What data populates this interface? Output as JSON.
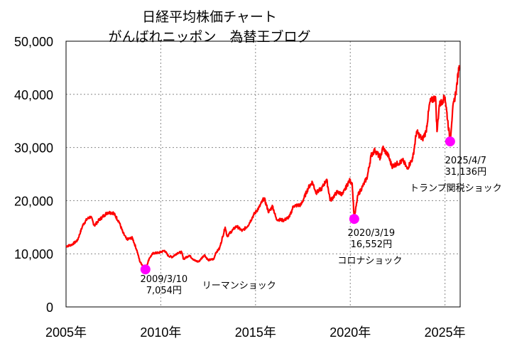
{
  "chart_data": {
    "type": "line",
    "title": "日経平均株価チャート",
    "subtitle": "がんばれニッポン　為替王ブログ",
    "xlabel": "",
    "ylabel": "",
    "xlim": [
      2005.0,
      2025.8
    ],
    "ylim": [
      0,
      50000
    ],
    "x_ticks": [
      {
        "value": 2005,
        "label": "2005年"
      },
      {
        "value": 2010,
        "label": "2010年"
      },
      {
        "value": 2015,
        "label": "2015年"
      },
      {
        "value": 2020,
        "label": "2020年"
      },
      {
        "value": 2025,
        "label": "2025年"
      }
    ],
    "y_ticks": [
      {
        "value": 0,
        "label": "0"
      },
      {
        "value": 10000,
        "label": "10,000"
      },
      {
        "value": 20000,
        "label": "20,000"
      },
      {
        "value": 30000,
        "label": "30,000"
      },
      {
        "value": 40000,
        "label": "40,000"
      },
      {
        "value": 50000,
        "label": "50,000"
      }
    ],
    "grid": true,
    "line_color": "#ff0000",
    "marker_color": "#ff00ff",
    "series": [
      {
        "name": "日経平均株価",
        "x": [
          2005.0,
          2005.3,
          2005.6,
          2005.9,
          2006.1,
          2006.3,
          2006.5,
          2006.7,
          2007.0,
          2007.2,
          2007.5,
          2007.8,
          2008.0,
          2008.2,
          2008.5,
          2008.75,
          2008.9,
          2009.0,
          2009.19,
          2009.4,
          2009.6,
          2009.9,
          2010.2,
          2010.4,
          2010.6,
          2010.9,
          2011.1,
          2011.2,
          2011.5,
          2011.8,
          2012.0,
          2012.3,
          2012.5,
          2012.8,
          2012.9,
          2013.1,
          2013.4,
          2013.5,
          2013.8,
          2014.0,
          2014.3,
          2014.6,
          2014.9,
          2015.2,
          2015.45,
          2015.7,
          2015.9,
          2016.1,
          2016.5,
          2016.8,
          2017.0,
          2017.4,
          2017.8,
          2018.0,
          2018.2,
          2018.5,
          2018.75,
          2018.95,
          2019.3,
          2019.6,
          2019.95,
          2020.1,
          2020.21,
          2020.4,
          2020.7,
          2020.9,
          2021.1,
          2021.3,
          2021.6,
          2021.7,
          2022.0,
          2022.2,
          2022.5,
          2022.8,
          2023.0,
          2023.3,
          2023.5,
          2023.8,
          2024.0,
          2024.2,
          2024.5,
          2024.58,
          2024.7,
          2024.9,
          2025.0,
          2025.27,
          2025.4,
          2025.6,
          2025.75
        ],
        "values": [
          11400,
          11700,
          12500,
          15500,
          16500,
          17000,
          15300,
          16200,
          17200,
          17800,
          17700,
          16000,
          14000,
          12700,
          13000,
          10500,
          8500,
          8000,
          7054,
          9200,
          10100,
          10200,
          10600,
          9600,
          9400,
          10200,
          10300,
          9000,
          9700,
          8700,
          8500,
          9800,
          8800,
          9000,
          10200,
          11000,
          15000,
          13300,
          14500,
          15200,
          14300,
          15300,
          17300,
          18800,
          20500,
          17800,
          19000,
          16500,
          16300,
          17000,
          19000,
          19200,
          22500,
          23500,
          21500,
          22300,
          24000,
          20000,
          21600,
          21200,
          23800,
          23300,
          16552,
          21000,
          23000,
          24500,
          28500,
          29500,
          28000,
          30000,
          28500,
          26500,
          27000,
          27500,
          26000,
          28000,
          33000,
          31500,
          33000,
          38500,
          39500,
          33000,
          38000,
          39000,
          39500,
          31136,
          37000,
          41000,
          45500
        ]
      }
    ],
    "annotations": [
      {
        "x": 2009.19,
        "y": 7054,
        "date": "2009/3/10",
        "value": "7,054円",
        "event": "リーマンショック"
      },
      {
        "x": 2020.21,
        "y": 16552,
        "date": "2020/3/19",
        "value": "16,552円",
        "event": "コロナショック"
      },
      {
        "x": 2025.27,
        "y": 31136,
        "date": "2025/4/7",
        "value": "31,136円",
        "event": "トランプ関税ショック"
      }
    ]
  }
}
